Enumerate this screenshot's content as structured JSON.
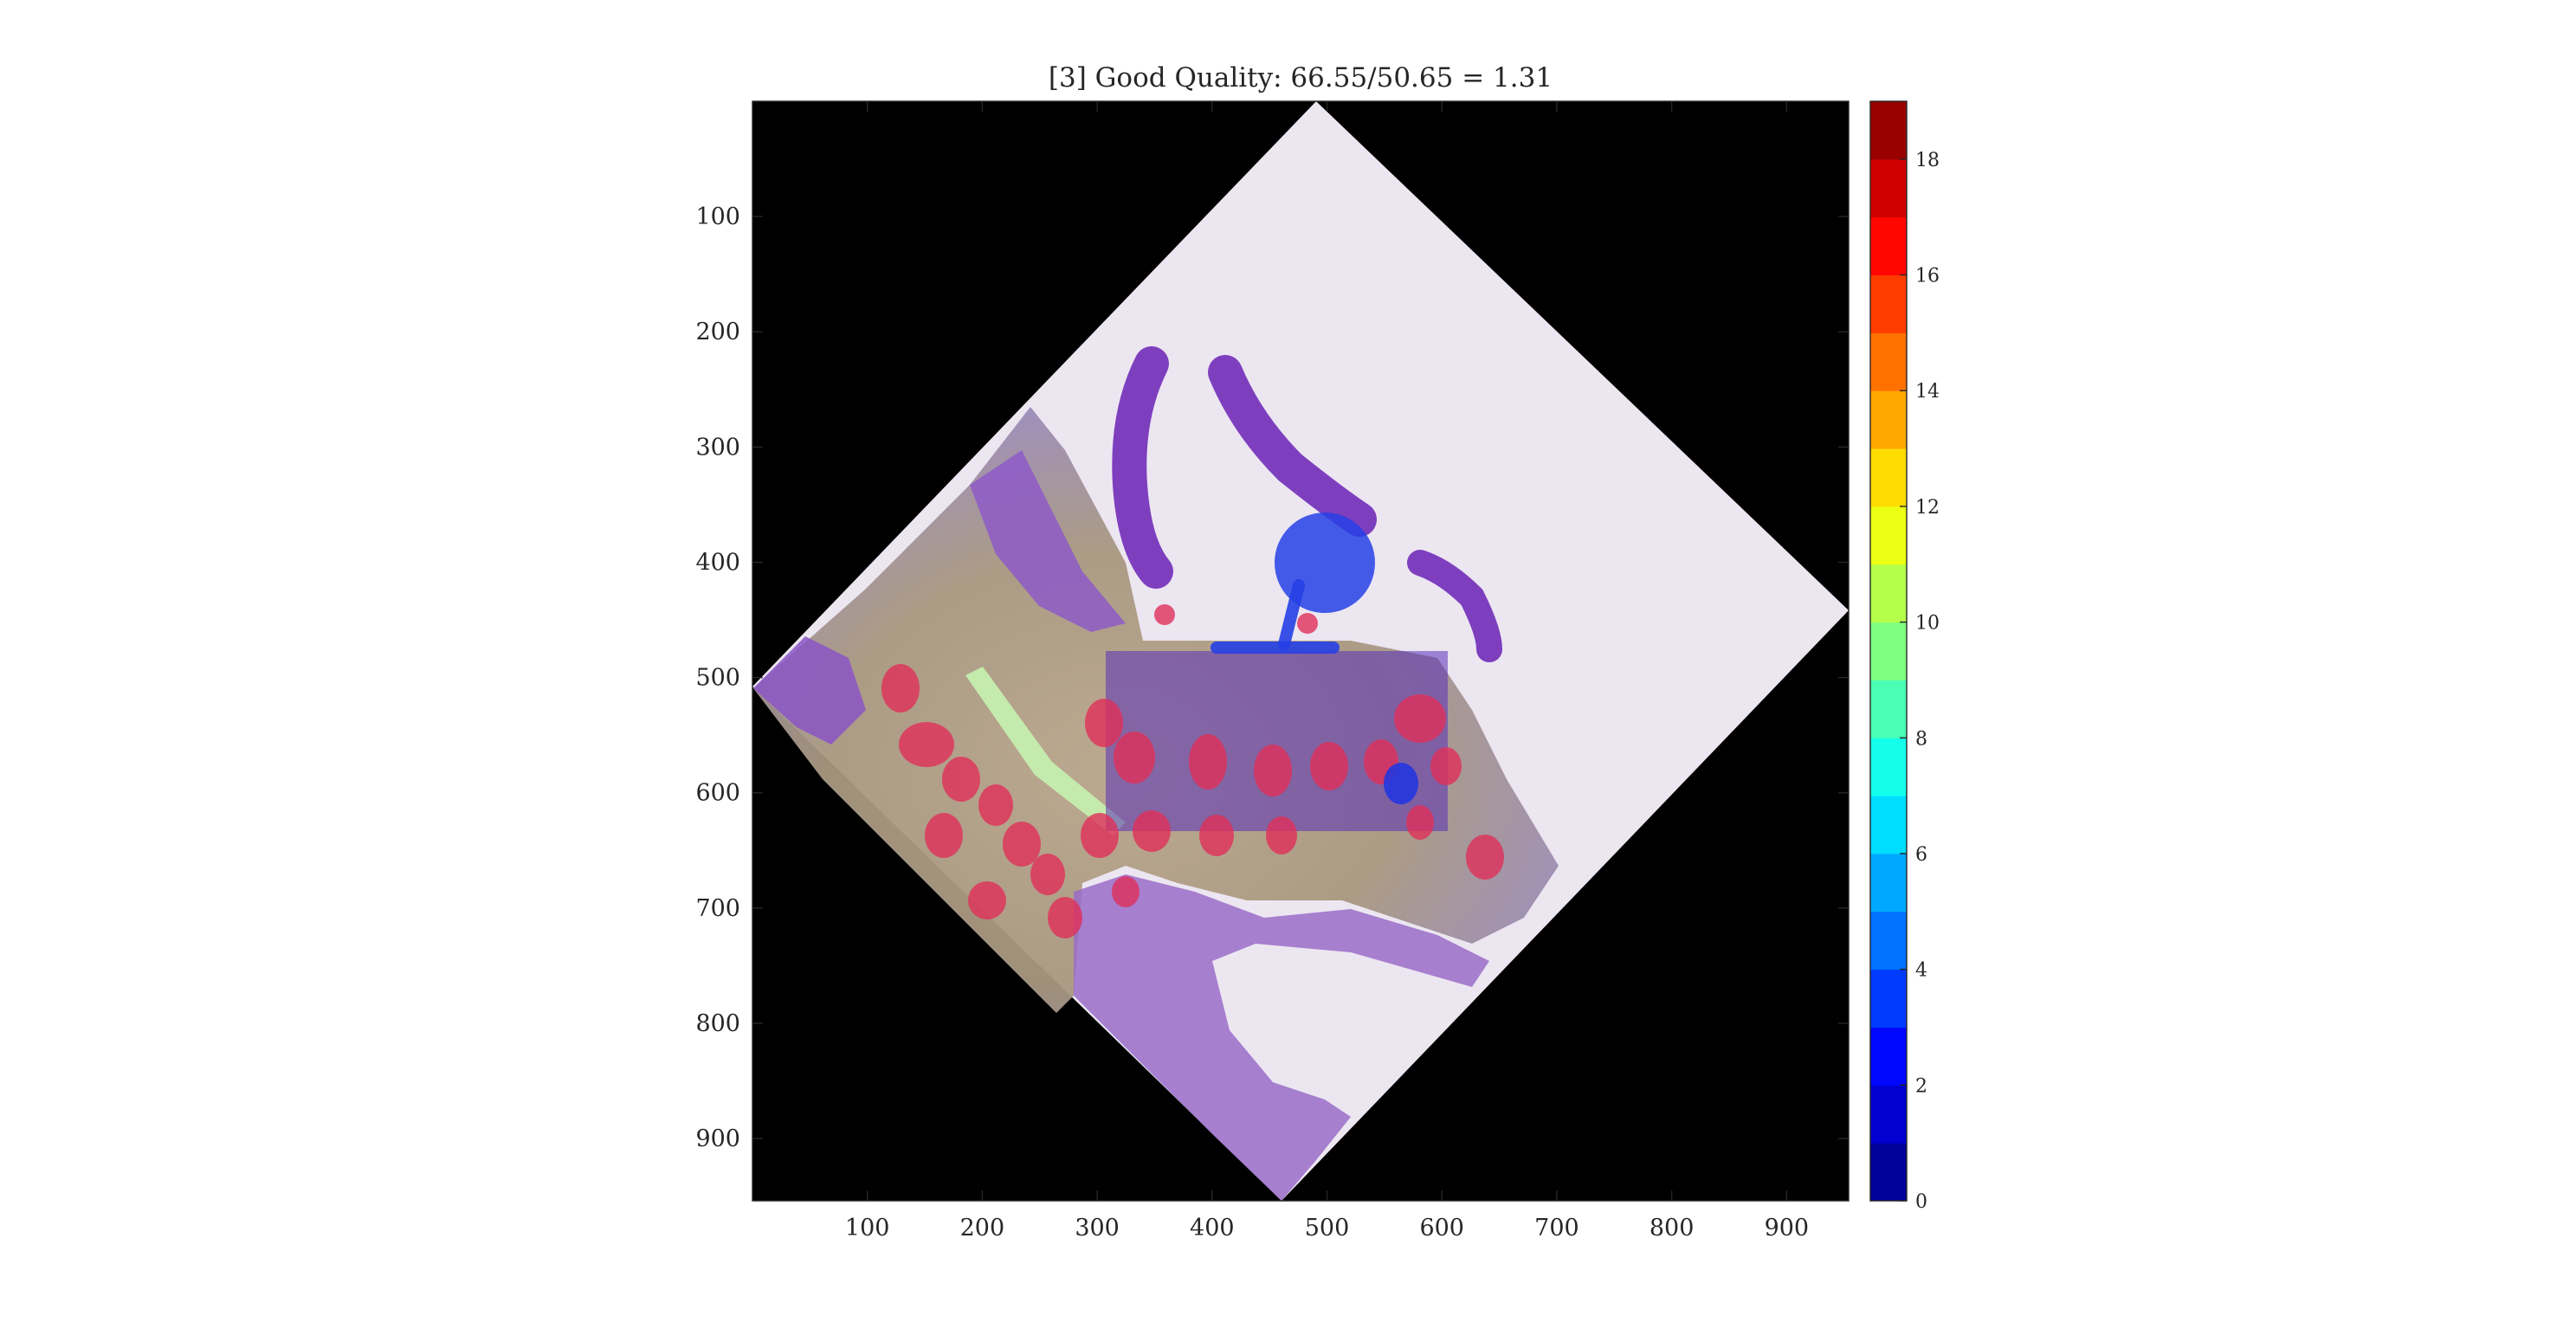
{
  "chart_data": {
    "type": "heatmap",
    "title": "[3] Good Quality: 66.55/50.65 = 1.31",
    "xlabel": "",
    "ylabel": "",
    "xlim": [
      0,
      954
    ],
    "ylim": [
      0,
      954
    ],
    "y_axis_direction": "reversed (top = 0)",
    "xticks": [
      100,
      200,
      300,
      400,
      500,
      600,
      700,
      800,
      900
    ],
    "yticks": [
      100,
      200,
      300,
      400,
      500,
      600,
      700,
      800,
      900
    ],
    "background": "rotated histology image (diamond-shaped tissue region on black)",
    "colormap": "jet",
    "colorbar": {
      "placement": "right",
      "lim": [
        0,
        19
      ],
      "levels": 19,
      "ticks": [
        0,
        2,
        4,
        6,
        8,
        10,
        12,
        14,
        16,
        18
      ]
    },
    "annotation_regions": [
      {
        "name": "crypt-rectangle",
        "shape": "rectangle",
        "x_range": [
          308,
          603
        ],
        "y_range": [
          475,
          630
        ],
        "color": "#5a2fb8"
      },
      {
        "name": "probe-circle",
        "shape": "circle",
        "center": [
          505,
          390
        ],
        "radius": 47,
        "color": "#2640e6"
      },
      {
        "name": "probe-stem",
        "shape": "line",
        "from": [
          465,
          438
        ],
        "to": [
          458,
          472
        ],
        "color": "#2640e6"
      },
      {
        "name": "probe-bar",
        "shape": "line",
        "from": [
          404,
          475
        ],
        "to": [
          508,
          475
        ],
        "color": "#2640e6"
      },
      {
        "name": "small-blob",
        "shape": "ellipse",
        "center": [
          562,
          595
        ],
        "r": [
          15,
          18
        ],
        "color": "#2436e0"
      }
    ]
  }
}
